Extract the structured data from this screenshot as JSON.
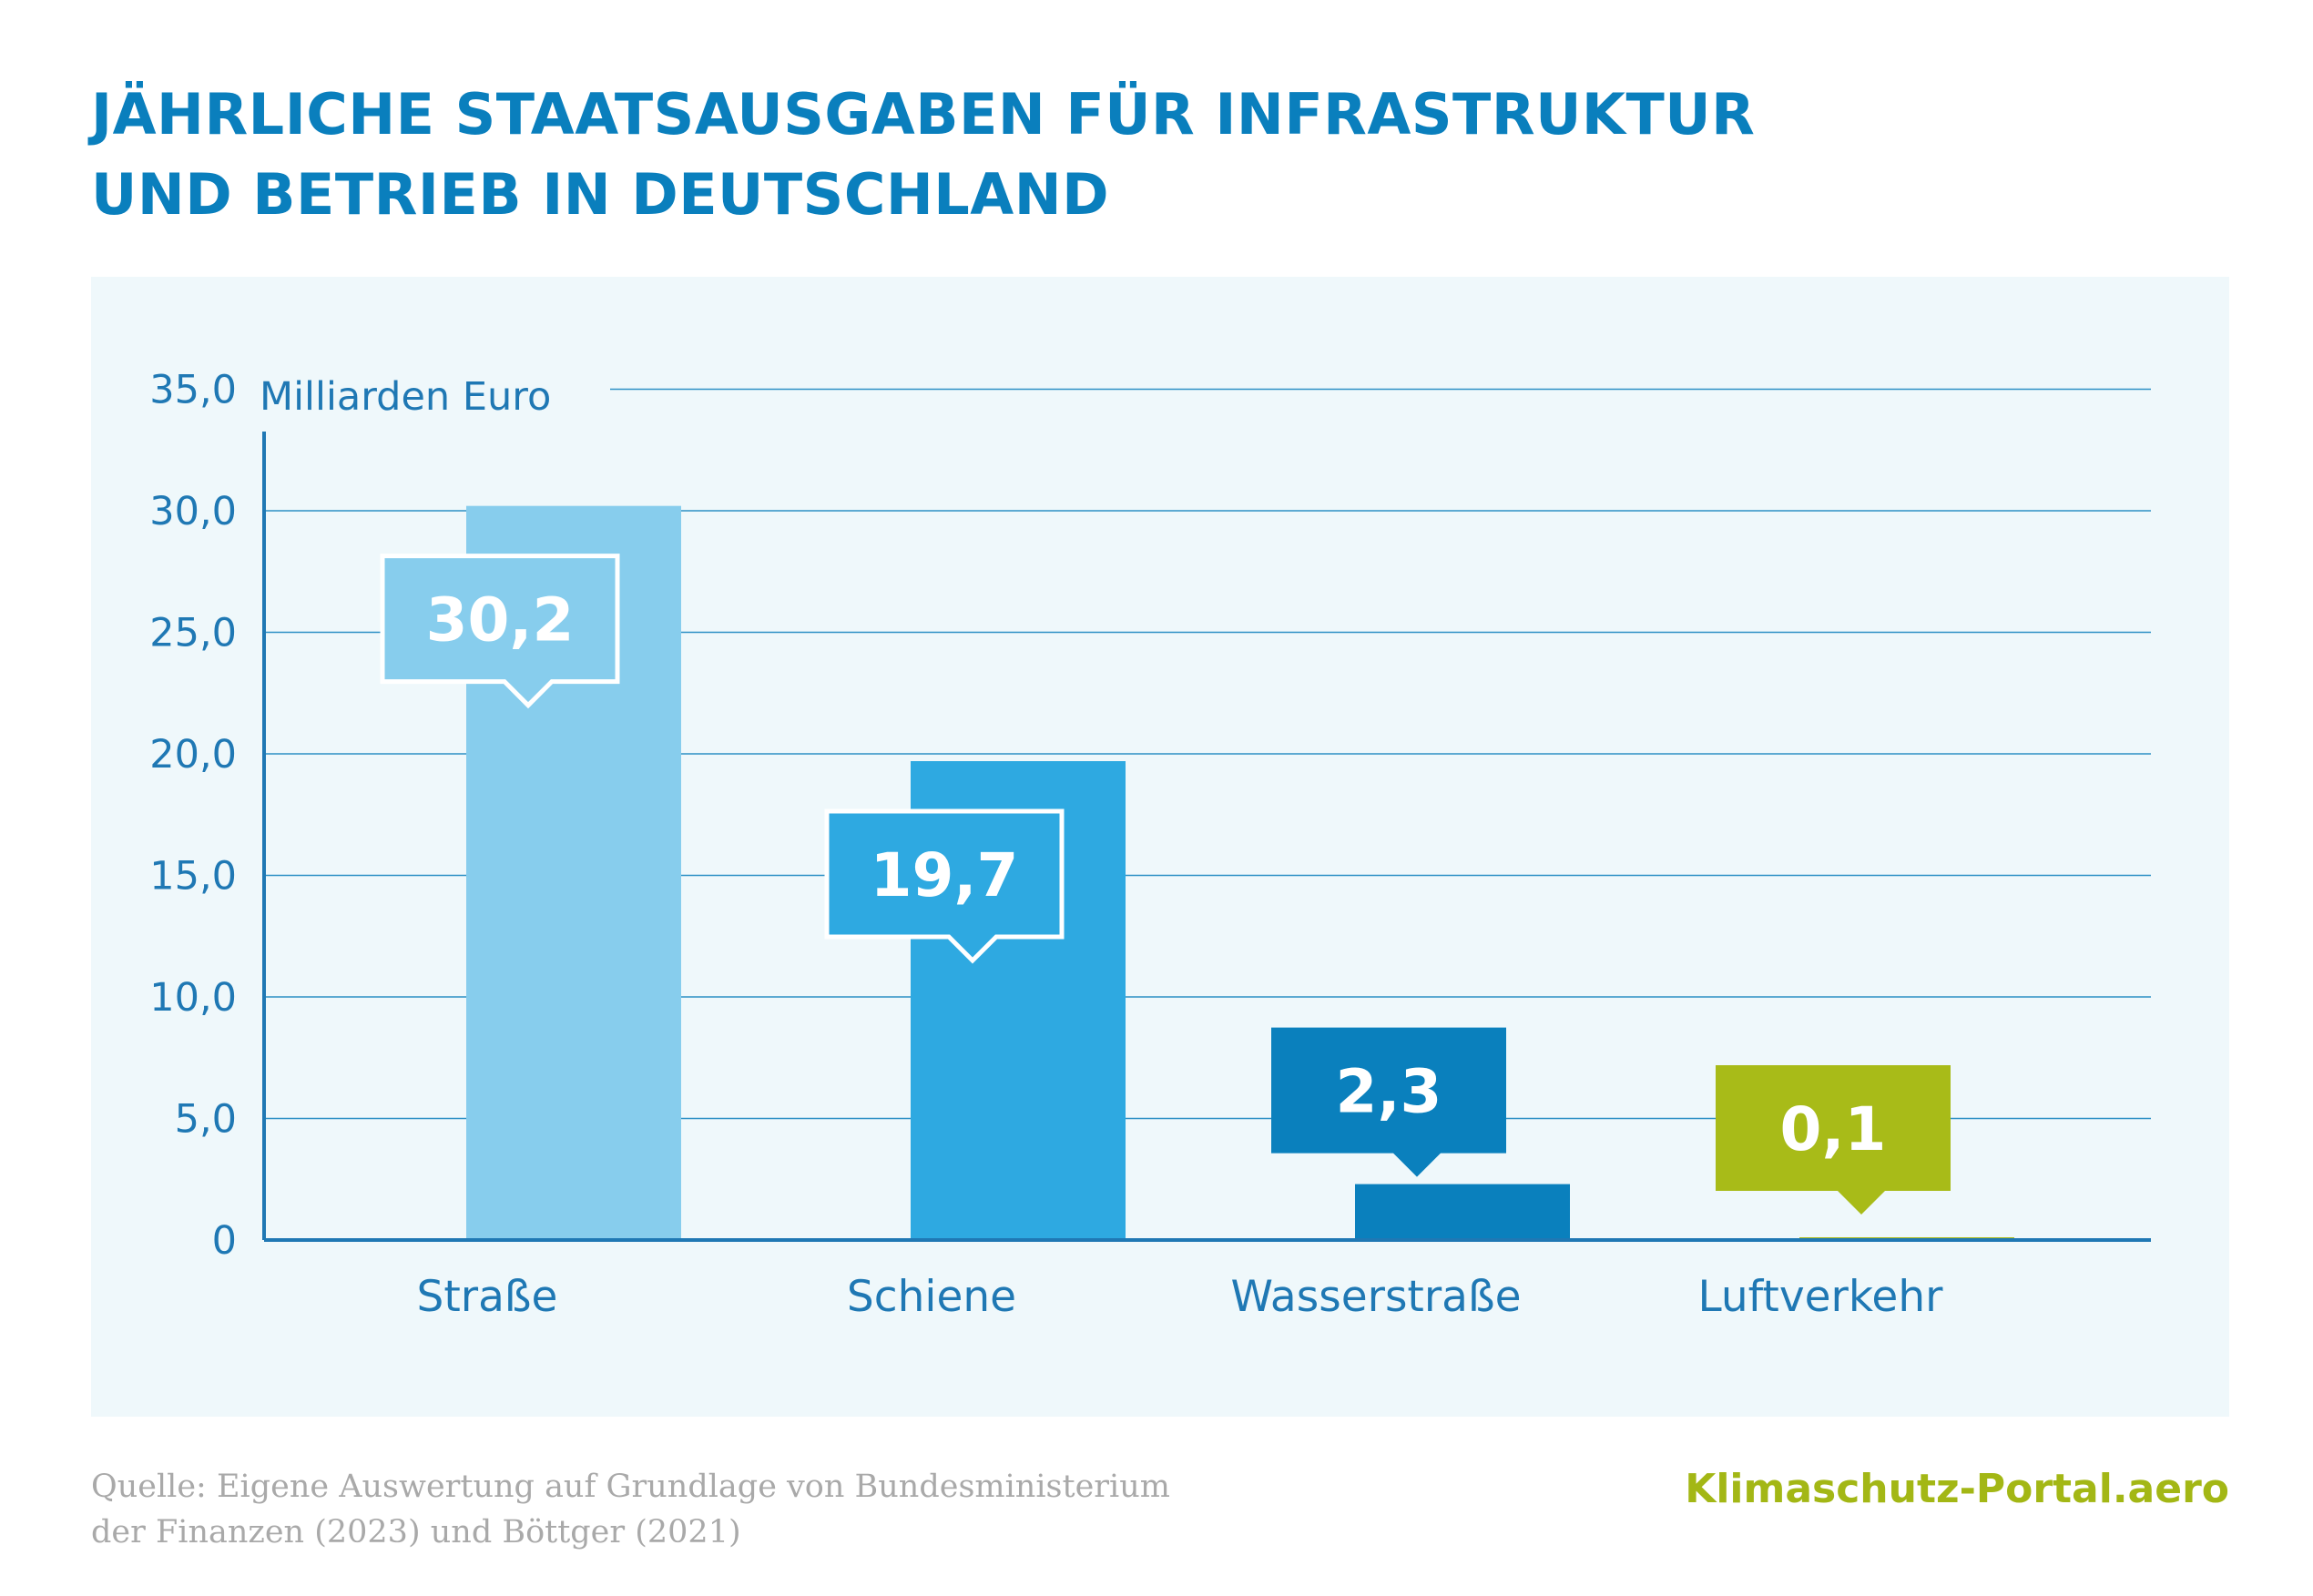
{
  "title": {
    "line1": "JÄHRLICHE STAATSAUSGABEN FÜR INFRASTRUKTUR",
    "line2": "UND BETRIEB  IN DEUTSCHLAND"
  },
  "source": {
    "line1": "Quelle: Eigene Auswertung auf Grundlage von Bundesministerium",
    "line2": "der Finanzen (2023) und Böttger (2021)"
  },
  "brand": "Klimaschutz-Portal.aero",
  "colors": {
    "title": "#0a7fbd",
    "axis": "#1f78b4",
    "grid": "#2d90c5",
    "panel_bg": "#eff8fb",
    "label_border": "#ffffff",
    "brand": "#a3b715",
    "source": "#a9a9a9"
  },
  "chart_data": {
    "type": "bar",
    "unit_label": "Milliarden Euro",
    "categories": [
      "Straße",
      "Schiene",
      "Wasserstraße",
      "Luftverkehr"
    ],
    "values": [
      30.2,
      19.7,
      2.3,
      0.1
    ],
    "value_labels": [
      "30,2",
      "19,7",
      "2,3",
      "0,1"
    ],
    "bar_colors": [
      "#87cded",
      "#2ea9e1",
      "#0a80bd",
      "#a8bb18"
    ],
    "ylim": [
      0,
      35
    ],
    "yticks": [
      0,
      5,
      10,
      15,
      20,
      25,
      30,
      35
    ],
    "ytick_labels": [
      "0",
      "5,0",
      "10,0",
      "15,0",
      "20,0",
      "25,0",
      "30,0",
      "35,0"
    ],
    "grid": true
  }
}
